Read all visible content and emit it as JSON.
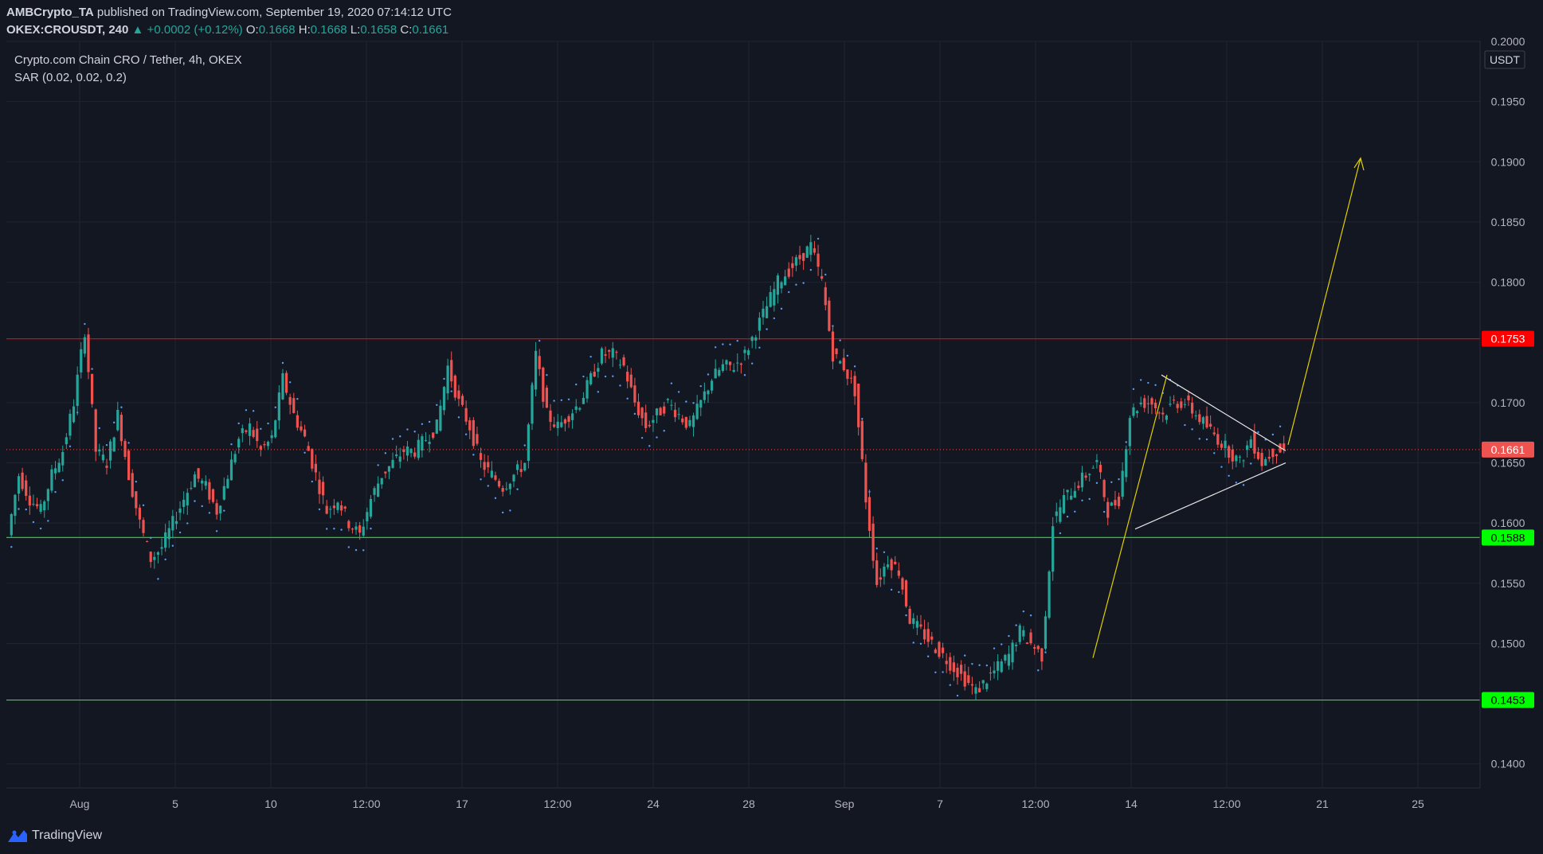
{
  "header": {
    "publisher": "AMBCrypto_TA",
    "published_text": "published on TradingView.com, September 19, 2020 07:14:12 UTC",
    "symbol": "OKEX:CROUSDT, 240",
    "change_arrow": "▲",
    "change": "+0.0002 (+0.12%)",
    "o_label": "O:",
    "o_value": "0.1668",
    "h_label": "H:",
    "h_value": "0.1668",
    "l_label": "L:",
    "l_value": "0.1658",
    "c_label": "C:",
    "c_value": "0.1661"
  },
  "legend": {
    "title": "Crypto.com Chain CRO / Tether, 4h, OKEX",
    "indicator": "SAR (0.02, 0.02, 0.2)"
  },
  "footer": {
    "brand": "TradingView"
  },
  "colors": {
    "background": "#131722",
    "up": "#26a69a",
    "down": "#ef5350",
    "resistance": "#ff0000",
    "support": "#00ff00",
    "sar": "#5b9cf6",
    "projection": "#e0d000",
    "pattern": "#e6e6e6"
  },
  "chart_data": {
    "type": "candlestick",
    "symbol": "OKEX:CROUSDT",
    "timeframe": "240",
    "currency": "USDT",
    "ylim": [
      0.138,
      0.2
    ],
    "y_ticks": [
      "0.2000",
      "0.1950",
      "0.1900",
      "0.1850",
      "0.1800",
      "0.1700",
      "0.1650",
      "0.1600",
      "0.1550",
      "0.1500",
      "0.1400"
    ],
    "x_ticks": [
      "Aug",
      "5",
      "10",
      "12:00",
      "17",
      "12:00",
      "24",
      "28",
      "Sep",
      "7",
      "12:00",
      "14",
      "12:00",
      "21",
      "25"
    ],
    "horizontal_levels": [
      {
        "value": 0.1753,
        "label": "0.1753",
        "color": "#ff0000"
      },
      {
        "value": 0.1588,
        "label": "0.1588",
        "color": "#00ff00"
      },
      {
        "value": 0.1453,
        "label": "0.1453",
        "color": "#00ff00"
      }
    ],
    "last_price": {
      "value": 0.1661,
      "label": "0.1661"
    },
    "price_path": [
      0.159,
      0.164,
      0.162,
      0.161,
      0.164,
      0.166,
      0.17,
      0.176,
      0.166,
      0.165,
      0.169,
      0.164,
      0.16,
      0.157,
      0.158,
      0.16,
      0.162,
      0.164,
      0.163,
      0.161,
      0.164,
      0.167,
      0.168,
      0.166,
      0.167,
      0.172,
      0.169,
      0.167,
      0.164,
      0.161,
      0.162,
      0.16,
      0.159,
      0.162,
      0.164,
      0.165,
      0.166,
      0.166,
      0.167,
      0.168,
      0.173,
      0.17,
      0.168,
      0.165,
      0.164,
      0.163,
      0.164,
      0.165,
      0.174,
      0.169,
      0.168,
      0.169,
      0.17,
      0.172,
      0.174,
      0.174,
      0.173,
      0.17,
      0.168,
      0.169,
      0.17,
      0.169,
      0.168,
      0.17,
      0.172,
      0.173,
      0.173,
      0.174,
      0.176,
      0.178,
      0.18,
      0.181,
      0.182,
      0.183,
      0.18,
      0.174,
      0.173,
      0.171,
      0.162,
      0.155,
      0.157,
      0.156,
      0.152,
      0.151,
      0.15,
      0.149,
      0.148,
      0.147,
      0.146,
      0.147,
      0.148,
      0.149,
      0.151,
      0.15,
      0.149,
      0.16,
      0.162,
      0.163,
      0.164,
      0.165,
      0.161,
      0.162,
      0.169,
      0.17,
      0.17,
      0.169,
      0.17,
      0.17,
      0.169,
      0.168,
      0.167,
      0.166,
      0.165,
      0.167,
      0.165,
      0.166,
      0.1661
    ],
    "annotations": [
      {
        "type": "symmetrical-triangle",
        "upper": [
          [
            0.1723,
            0.166
          ]
        ],
        "lower": [
          [
            0.1595,
            0.165
          ]
        ]
      },
      {
        "type": "projection-arrow",
        "from": 0.1488,
        "to": 0.1903
      }
    ]
  }
}
